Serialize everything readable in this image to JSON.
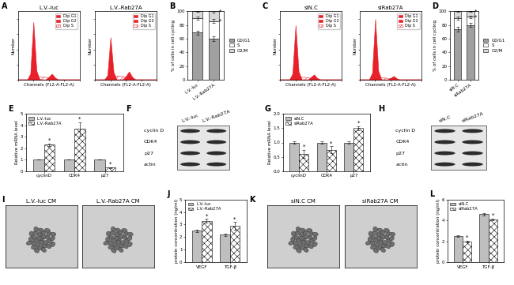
{
  "chart_data": [
    {
      "panel": "A",
      "type": "flow",
      "xlabel": "Channels (FL2-A-FL2-A)",
      "ylabel": "Number",
      "x": [
        0,
        10,
        20,
        30,
        40,
        50,
        60,
        70,
        80,
        90,
        100,
        110,
        120,
        130,
        140,
        150,
        160,
        170,
        180,
        190,
        200
      ],
      "xlim": [
        0,
        200
      ],
      "ylim": [
        0,
        450
      ],
      "xticks": [
        0,
        50,
        100,
        150,
        200
      ],
      "yticks": [
        0,
        100,
        200,
        300,
        400
      ],
      "tick_labels": false,
      "legend": "upper right",
      "charts": [
        {
          "title": "L.V.-luc",
          "series": [
            {
              "name": "Dip G1",
              "color": "#e8202a",
              "type": "area",
              "values": [
                0,
                0,
                0,
                2,
                40,
                380,
                60,
                4,
                0,
                0,
                0,
                0,
                0,
                0,
                0,
                0,
                0,
                0,
                0,
                0,
                0
              ]
            },
            {
              "name": "Dip G2",
              "color": "#e8202a",
              "type": "area",
              "values": [
                0,
                0,
                0,
                0,
                0,
                0,
                0,
                0,
                0,
                2,
                20,
                40,
                15,
                2,
                0,
                0,
                0,
                0,
                0,
                0,
                0
              ]
            },
            {
              "name": "Dip S",
              "color": "#e8202a",
              "type": "hatched_area",
              "values": [
                0,
                0,
                0,
                0,
                0,
                5,
                15,
                18,
                18,
                16,
                12,
                6,
                0,
                0,
                0,
                0,
                0,
                0,
                0,
                0,
                0
              ]
            }
          ]
        },
        {
          "title": "L.V.-Rab27A",
          "series": [
            {
              "name": "Dip G1",
              "color": "#e8202a",
              "type": "area",
              "values": [
                0,
                0,
                0,
                2,
                30,
                280,
                50,
                3,
                0,
                0,
                0,
                0,
                0,
                0,
                0,
                0,
                0,
                0,
                0,
                0,
                0
              ]
            },
            {
              "name": "Dip G2",
              "color": "#e8202a",
              "type": "area",
              "values": [
                0,
                0,
                0,
                0,
                0,
                0,
                0,
                0,
                0,
                3,
                25,
                55,
                20,
                3,
                0,
                0,
                0,
                0,
                0,
                0,
                0
              ]
            },
            {
              "name": "Dip S",
              "color": "#e8202a",
              "type": "hatched_area",
              "values": [
                0,
                0,
                0,
                0,
                0,
                6,
                20,
                25,
                25,
                22,
                15,
                8,
                0,
                0,
                0,
                0,
                0,
                0,
                0,
                0,
                0
              ]
            }
          ]
        }
      ]
    },
    {
      "panel": "B",
      "type": "stacked_bar",
      "ylabel": "% of cells in cell cycling",
      "categories": [
        "L.V.-luc",
        "L.V.-Rab27A"
      ],
      "ylim": [
        0,
        100
      ],
      "yticks": [
        0,
        20,
        40,
        60,
        80,
        100
      ],
      "legend": "right",
      "series": [
        {
          "name": "G0/G1",
          "color": "#a0a0a0",
          "values": [
            69,
            60
          ],
          "errors": [
            3,
            3
          ],
          "significance": [
            null,
            null
          ]
        },
        {
          "name": "S",
          "color": "#ffffff",
          "values": [
            21,
            26
          ],
          "errors": [
            2,
            3
          ],
          "significance": [
            null,
            "*"
          ]
        },
        {
          "name": "G2/M",
          "color": "#d9d9d9",
          "values": [
            10,
            14
          ],
          "errors": [
            1,
            2
          ],
          "significance": [
            null,
            "*"
          ]
        }
      ]
    },
    {
      "panel": "C",
      "type": "flow",
      "xlabel": "Channels (FL2-A-FL2-A)",
      "ylabel": "Number",
      "x": [
        0,
        10,
        20,
        30,
        40,
        50,
        60,
        70,
        80,
        90,
        100,
        110,
        120,
        130,
        140,
        150,
        160,
        170,
        180,
        190,
        200
      ],
      "xlim": [
        0,
        200
      ],
      "ylim": [
        0,
        450
      ],
      "xticks": [
        0,
        50,
        100,
        150,
        200
      ],
      "yticks": [
        0,
        100,
        200,
        300,
        400
      ],
      "tick_labels": false,
      "legend": "upper right",
      "charts": [
        {
          "title": "siN.C",
          "series": [
            {
              "name": "Dip G1",
              "color": "#e8202a",
              "type": "area",
              "values": [
                0,
                0,
                0,
                2,
                40,
                360,
                55,
                3,
                0,
                0,
                0,
                0,
                0,
                0,
                0,
                0,
                0,
                0,
                0,
                0,
                0
              ]
            },
            {
              "name": "Dip G2",
              "color": "#e8202a",
              "type": "area",
              "values": [
                0,
                0,
                0,
                0,
                0,
                0,
                0,
                0,
                0,
                2,
                18,
                35,
                12,
                2,
                0,
                0,
                0,
                0,
                0,
                0,
                0
              ]
            },
            {
              "name": "Dip S",
              "color": "#e8202a",
              "type": "hatched_area",
              "values": [
                0,
                0,
                0,
                0,
                0,
                5,
                14,
                16,
                16,
                14,
                10,
                5,
                0,
                0,
                0,
                0,
                0,
                0,
                0,
                0,
                0
              ]
            }
          ]
        },
        {
          "title": "siRab27A",
          "series": [
            {
              "name": "Dip G1",
              "color": "#e8202a",
              "type": "area",
              "values": [
                0,
                0,
                0,
                2,
                45,
                400,
                60,
                3,
                0,
                0,
                0,
                0,
                0,
                0,
                0,
                0,
                0,
                0,
                0,
                0,
                0
              ]
            },
            {
              "name": "Dip G2",
              "color": "#e8202a",
              "type": "area",
              "values": [
                0,
                0,
                0,
                0,
                0,
                0,
                0,
                0,
                0,
                2,
                12,
                25,
                9,
                1,
                0,
                0,
                0,
                0,
                0,
                0,
                0
              ]
            },
            {
              "name": "Dip S",
              "color": "#e8202a",
              "type": "hatched_area",
              "values": [
                0,
                0,
                0,
                0,
                0,
                4,
                10,
                12,
                12,
                10,
                7,
                3,
                0,
                0,
                0,
                0,
                0,
                0,
                0,
                0,
                0
              ]
            }
          ]
        }
      ]
    },
    {
      "panel": "D",
      "type": "stacked_bar",
      "ylabel": "% of cells in cell cycling",
      "categories": [
        "siN.C",
        "siRab27A"
      ],
      "ylim": [
        0,
        100
      ],
      "yticks": [
        0,
        20,
        40,
        60,
        80,
        100
      ],
      "legend": "right",
      "series": [
        {
          "name": "G0/G1",
          "color": "#a0a0a0",
          "values": [
            74,
            80
          ],
          "errors": [
            3,
            3
          ],
          "significance": [
            null,
            null
          ]
        },
        {
          "name": "S",
          "color": "#ffffff",
          "values": [
            16,
            12
          ],
          "errors": [
            2,
            2
          ],
          "significance": [
            null,
            "*"
          ]
        },
        {
          "name": "G2/M",
          "color": "#d9d9d9",
          "values": [
            10,
            8
          ],
          "errors": [
            1,
            1
          ],
          "significance": [
            null,
            "*"
          ]
        }
      ]
    },
    {
      "panel": "E",
      "type": "grouped_bar",
      "ylabel": "Relative mRNA level",
      "categories": [
        "cyclinD",
        "CDK4",
        "p27"
      ],
      "ylim": [
        0,
        5
      ],
      "yticks": [
        0,
        1,
        2,
        3,
        4,
        5
      ],
      "legend": "upper left",
      "series": [
        {
          "name": "L.V.-luc",
          "color": "#bfbfbf",
          "type": "bar",
          "values": [
            1,
            1,
            1
          ],
          "errors": [
            0,
            0,
            0
          ],
          "significance": [
            null,
            null,
            null
          ]
        },
        {
          "name": "L.V.-Rab27A",
          "color": "#ffffff",
          "type": "hatched_bar",
          "values": [
            2.3,
            3.7,
            0.3
          ],
          "errors": [
            0.1,
            0.6,
            0.05
          ],
          "significance": [
            "*",
            "*",
            "*"
          ]
        }
      ]
    },
    {
      "panel": "F",
      "type": "western_blot",
      "rows": [
        "cyclin D",
        "CDK4",
        "p27",
        "actin"
      ],
      "lanes": [
        "L.V.-luc",
        "L.V.-Rab27A"
      ]
    },
    {
      "panel": "G",
      "type": "grouped_bar",
      "ylabel": "Relative mRNA level",
      "categories": [
        "cyclinD",
        "CDK4",
        "p27"
      ],
      "ylim": [
        0,
        2
      ],
      "yticks": [
        {
          "value": 0,
          "label": "0.0"
        },
        {
          "value": 0.5,
          "label": "0.5"
        },
        {
          "value": 1,
          "label": "1.0"
        },
        {
          "value": 1.5,
          "label": "1.5"
        },
        {
          "value": 2,
          "label": "2.0"
        }
      ],
      "legend": "upper left",
      "series": [
        {
          "name": "siN.C",
          "color": "#bfbfbf",
          "type": "bar",
          "values": [
            1,
            1,
            1
          ],
          "errors": [
            0.03,
            0.03,
            0.05
          ],
          "significance": [
            null,
            null,
            null
          ]
        },
        {
          "name": "siRab27A",
          "color": "#ffffff",
          "type": "hatched_bar",
          "values": [
            0.6,
            0.75,
            1.5
          ],
          "errors": [
            0.15,
            0.12,
            0.08
          ],
          "significance": [
            "*",
            "*",
            "*"
          ]
        }
      ]
    },
    {
      "panel": "H",
      "type": "western_blot",
      "rows": [
        "cyclin D",
        "CDK4",
        "p27",
        "actin"
      ],
      "lanes": [
        "siN.C",
        "siRab27A"
      ]
    },
    {
      "panel": "I",
      "type": "image",
      "titles": [
        "L.V.-luc CM",
        "L.V.-Rab27A CM"
      ]
    },
    {
      "panel": "J",
      "type": "grouped_bar",
      "ylabel": "protein concentration (ng/ml)",
      "categories": [
        "VEGF",
        "TGF-β"
      ],
      "ylim": [
        0,
        5
      ],
      "yticks": [
        0,
        1,
        2,
        3,
        4,
        5
      ],
      "legend": "upper left",
      "series": [
        {
          "name": "L.V.-luc",
          "color": "#bfbfbf",
          "type": "bar",
          "values": [
            2.5,
            2.2
          ],
          "errors": [
            0.1,
            0.1
          ],
          "significance": [
            null,
            null
          ]
        },
        {
          "name": "L.V.-Rab27A",
          "color": "#ffffff",
          "type": "hatched_bar",
          "values": [
            3.3,
            2.9
          ],
          "errors": [
            0.15,
            0.3
          ],
          "significance": [
            "*",
            "*"
          ]
        }
      ]
    },
    {
      "panel": "K",
      "type": "image",
      "titles": [
        "siN.C CM",
        "siRab27A CM"
      ]
    },
    {
      "panel": "L",
      "type": "grouped_bar",
      "ylabel": "protein concentration (ng/ml)",
      "categories": [
        "VEGF",
        "TGF-β"
      ],
      "ylim": [
        0,
        6
      ],
      "yticks": [
        0,
        2,
        4,
        6
      ],
      "legend": "upper left",
      "series": [
        {
          "name": "siN.C",
          "color": "#bfbfbf",
          "type": "bar",
          "values": [
            2.5,
            4.6
          ],
          "errors": [
            0.05,
            0.1
          ],
          "significance": [
            null,
            null
          ]
        },
        {
          "name": "siRab27A",
          "color": "#ffffff",
          "type": "hatched_bar",
          "values": [
            2.0,
            4.1
          ],
          "errors": [
            0.08,
            0.1
          ],
          "significance": [
            "*",
            "*"
          ]
        }
      ]
    }
  ]
}
